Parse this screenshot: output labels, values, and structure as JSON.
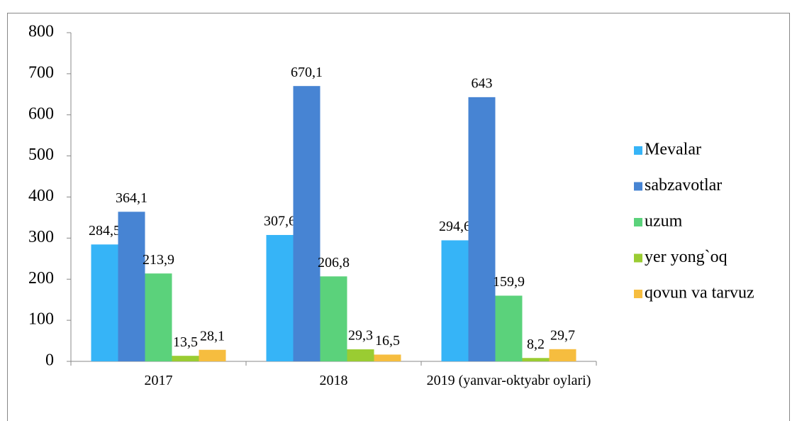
{
  "chart_data": {
    "type": "bar",
    "categories": [
      "2017",
      "2018",
      "2019 (yanvar-oktyabr oylari)"
    ],
    "series": [
      {
        "name": "Mevalar",
        "color": "#36b4f7",
        "values": [
          284.5,
          307.6,
          294.6
        ],
        "value_labels": [
          "284,5",
          "307,6",
          "294,6"
        ]
      },
      {
        "name": "sabzavotlar",
        "color": "#4784d3",
        "values": [
          364.1,
          670.1,
          643
        ],
        "value_labels": [
          "364,1",
          "670,1",
          "643"
        ]
      },
      {
        "name": "uzum",
        "color": "#5bd27b",
        "values": [
          213.9,
          206.8,
          159.9
        ],
        "value_labels": [
          "213,9",
          "206,8",
          "159,9"
        ]
      },
      {
        "name": "yer yong`oq",
        "color": "#9acc32",
        "values": [
          13.5,
          29.3,
          8.2
        ],
        "value_labels": [
          "13,5",
          "29,3",
          "8,2"
        ]
      },
      {
        "name": "qovun va tarvuz",
        "color": "#f6bd3f",
        "values": [
          28.1,
          16.5,
          29.7
        ],
        "value_labels": [
          "28,1",
          "16,5",
          "29,7"
        ]
      }
    ],
    "ylim": [
      0,
      800
    ],
    "yticks": [
      0,
      100,
      200,
      300,
      400,
      500,
      600,
      700,
      800
    ],
    "grid": false,
    "legend": "right"
  }
}
